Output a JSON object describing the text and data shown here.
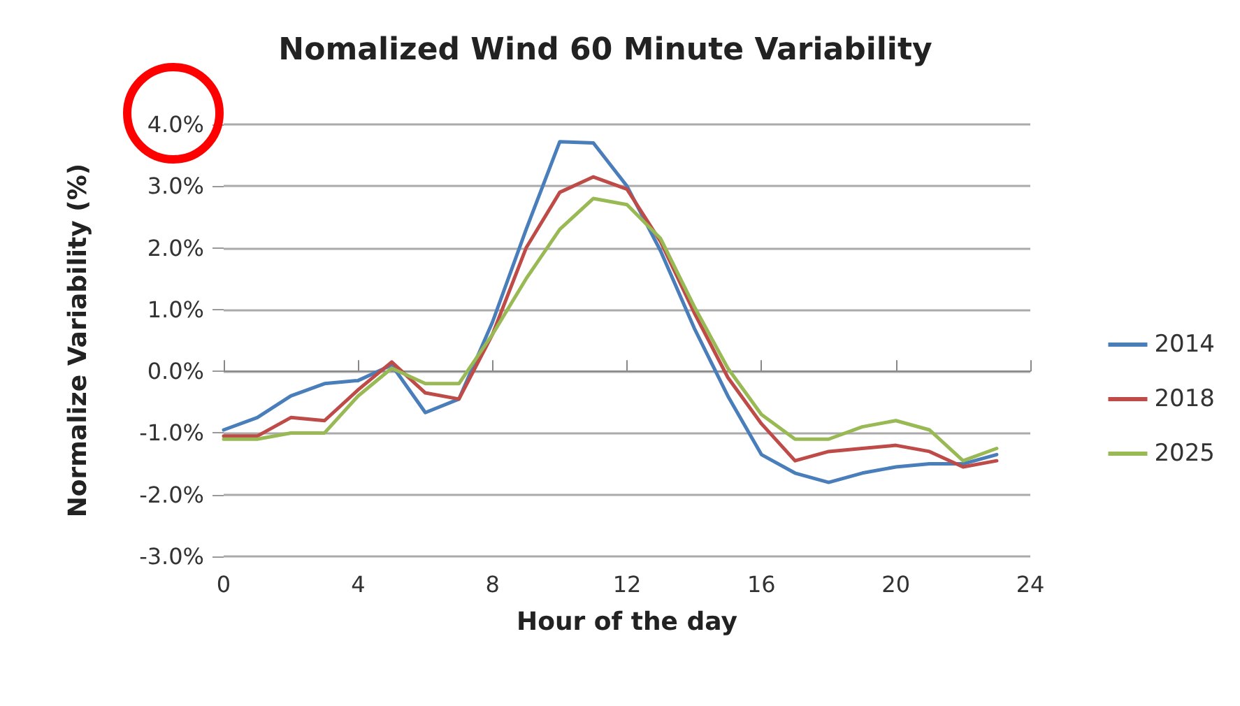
{
  "chart_data": {
    "type": "line",
    "title": "Nomalized Wind 60 Minute Variability",
    "xlabel": "Hour of the day",
    "ylabel": "Normalize Variability (%)",
    "x": [
      0,
      1,
      2,
      3,
      4,
      5,
      6,
      7,
      8,
      9,
      10,
      11,
      12,
      13,
      14,
      15,
      16,
      17,
      18,
      19,
      20,
      21,
      22,
      23
    ],
    "series": [
      {
        "name": "2014",
        "color": "#4a7ebb",
        "values": [
          -0.95,
          -0.75,
          -0.4,
          -0.2,
          -0.15,
          0.1,
          -0.67,
          -0.45,
          0.8,
          2.3,
          3.72,
          3.7,
          3.0,
          1.95,
          0.7,
          -0.4,
          -1.35,
          -1.65,
          -1.8,
          -1.65,
          -1.55,
          -1.5,
          -1.5,
          -1.35
        ]
      },
      {
        "name": "2018",
        "color": "#be4b48",
        "values": [
          -1.05,
          -1.05,
          -0.75,
          -0.8,
          -0.3,
          0.15,
          -0.35,
          -0.45,
          0.6,
          2.0,
          2.9,
          3.15,
          2.95,
          2.1,
          0.95,
          -0.1,
          -0.85,
          -1.45,
          -1.3,
          -1.25,
          -1.2,
          -1.3,
          -1.55,
          -1.45
        ]
      },
      {
        "name": "2025",
        "color": "#98b954",
        "values": [
          -1.1,
          -1.1,
          -1.0,
          -1.0,
          -0.4,
          0.05,
          -0.2,
          -0.2,
          0.6,
          1.5,
          2.3,
          2.8,
          2.7,
          2.15,
          1.05,
          0.05,
          -0.7,
          -1.1,
          -1.1,
          -0.9,
          -0.8,
          -0.95,
          -1.45,
          -1.25
        ]
      }
    ],
    "xlim": [
      0,
      24
    ],
    "xticks": [
      0,
      4,
      8,
      12,
      16,
      20,
      24
    ],
    "ylim": [
      -3,
      4
    ],
    "yticks": [
      {
        "value": -3,
        "label": "-3.0%"
      },
      {
        "value": -2,
        "label": "-2.0%"
      },
      {
        "value": -1,
        "label": "-1.0%"
      },
      {
        "value": 0,
        "label": "0.0%"
      },
      {
        "value": 1,
        "label": "1.0%"
      },
      {
        "value": 2,
        "label": "2.0%"
      },
      {
        "value": 3,
        "label": "3.0%"
      },
      {
        "value": 4,
        "label": "4.0%"
      }
    ],
    "grid": "y",
    "legend": "right",
    "marker": "none",
    "line_style": "solid"
  }
}
